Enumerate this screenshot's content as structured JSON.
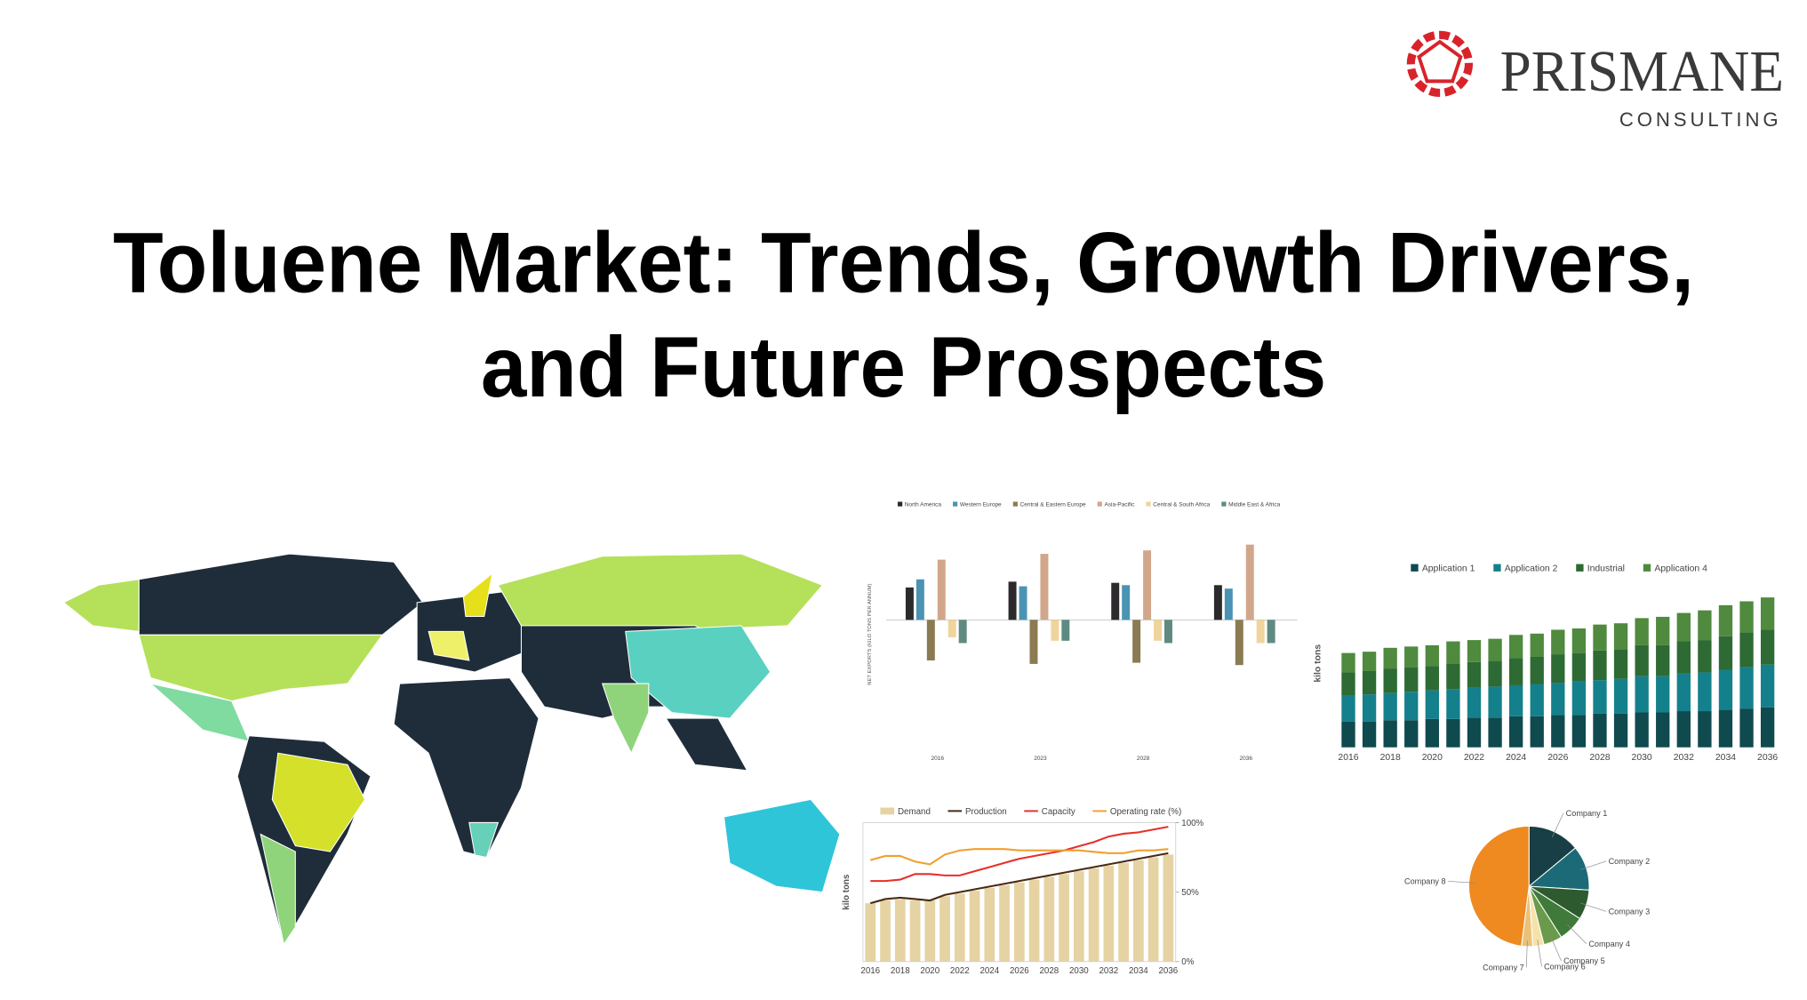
{
  "header": {
    "brand": "PRISMANE",
    "tagline": "CONSULTING"
  },
  "title": [
    "Toluene Market: Trends, Growth Drivers,",
    "and Future Prospects"
  ],
  "chart_data": [
    {
      "type": "bar",
      "y_label": "NET EXPORTS (KILO TONS PER ANNUM)",
      "categories": [
        "2016",
        "2023",
        "2028",
        "2036"
      ],
      "ylim": [
        -115,
        90
      ],
      "series": [
        {
          "name": "North America",
          "color": "#2d2a2e",
          "values": [
            28,
            33,
            32,
            30
          ]
        },
        {
          "name": "Western Europe",
          "color": "#4b93b3",
          "values": [
            35,
            29,
            30,
            27
          ]
        },
        {
          "name": "Central & Eastern Europe",
          "color": "#8a7b52",
          "values": [
            -35,
            -38,
            -37,
            -39
          ]
        },
        {
          "name": "Asia-Pacific",
          "color": "#d2a68b",
          "values": [
            52,
            57,
            60,
            65
          ]
        },
        {
          "name": "Central & South Africa",
          "color": "#efd49b",
          "values": [
            -15,
            -18,
            -18,
            -20
          ]
        },
        {
          "name": "Middle East & Africa",
          "color": "#5f8a82",
          "values": [
            -20,
            -18,
            -20,
            -20
          ]
        }
      ]
    },
    {
      "type": "bar",
      "stacked": true,
      "y_label": "kilo tons",
      "categories": [
        "2016",
        null,
        "2018",
        null,
        "2020",
        null,
        "2022",
        null,
        "2024",
        null,
        "2026",
        null,
        "2028",
        null,
        "2030",
        null,
        "2032",
        null,
        "2034",
        null,
        "2036"
      ],
      "ylim": [
        0,
        130
      ],
      "series": [
        {
          "name": "Application 1",
          "color": "#0f4a4f",
          "values": [
            20,
            20,
            21,
            21,
            22,
            22,
            23,
            23,
            24,
            24,
            25,
            25,
            26,
            26,
            27,
            27,
            28,
            28,
            29,
            30,
            31
          ]
        },
        {
          "name": "Application 2",
          "color": "#14808c",
          "values": [
            20,
            21,
            21,
            22,
            22,
            23,
            23,
            24,
            24,
            25,
            25,
            26,
            26,
            27,
            28,
            28,
            29,
            30,
            31,
            32,
            33
          ]
        },
        {
          "name": "Industrial",
          "color": "#2e6a34",
          "values": [
            18,
            18,
            19,
            19,
            19,
            20,
            20,
            20,
            21,
            21,
            22,
            22,
            23,
            23,
            24,
            24,
            25,
            25,
            26,
            27,
            27
          ]
        },
        {
          "name": "Application 4",
          "color": "#4f8a3e",
          "values": [
            15,
            15,
            16,
            16,
            16,
            17,
            17,
            17,
            18,
            18,
            19,
            19,
            20,
            20,
            21,
            22,
            22,
            23,
            24,
            24,
            25
          ]
        }
      ]
    },
    {
      "type": "combo",
      "y_label": "kilo tons",
      "categories": [
        "2016",
        null,
        "2018",
        null,
        "2020",
        null,
        "2022",
        null,
        "2024",
        null,
        "2026",
        null,
        "2028",
        null,
        "2030",
        null,
        "2032",
        null,
        "2034",
        null,
        "2036"
      ],
      "ylim": [
        0,
        100
      ],
      "y2lim": [
        0,
        100
      ],
      "y2ticks": [
        {
          "value": 0,
          "label": "0%"
        },
        {
          "value": 50,
          "label": "50%"
        },
        {
          "value": 100,
          "label": "100%"
        }
      ],
      "series": [
        {
          "name": "Demand",
          "type": "bar",
          "color": "#e6d3a3",
          "values": [
            42,
            44,
            45,
            44,
            44,
            47,
            49,
            51,
            53,
            55,
            57,
            59,
            61,
            63,
            65,
            67,
            69,
            71,
            73,
            75,
            77
          ]
        },
        {
          "name": "Production",
          "type": "line",
          "color": "#4a2a14",
          "values": [
            42,
            45,
            46,
            45,
            44,
            48,
            50,
            52,
            54,
            56,
            58,
            60,
            62,
            64,
            66,
            68,
            70,
            72,
            74,
            76,
            78
          ]
        },
        {
          "name": "Capacity",
          "type": "line",
          "color": "#e6302a",
          "values": [
            58,
            58,
            59,
            63,
            63,
            62,
            62,
            65,
            68,
            71,
            74,
            76,
            78,
            80,
            83,
            86,
            90,
            92,
            93,
            95,
            97
          ]
        },
        {
          "name": "Operating rate (%)",
          "type": "line",
          "axis": "y2",
          "color": "#f0a030",
          "values": [
            73,
            76,
            76,
            72,
            70,
            77,
            80,
            81,
            81,
            81,
            80,
            80,
            80,
            80,
            80,
            79,
            78,
            78,
            80,
            80,
            81
          ]
        }
      ]
    },
    {
      "type": "pie",
      "categories": [
        "Company 1",
        "Company 2",
        "Company 3",
        "Company 4",
        "Company 5",
        "Company 6",
        "Company 7",
        "Company 8"
      ],
      "values": [
        14,
        12,
        8,
        7,
        5,
        3,
        3,
        48
      ],
      "colors": [
        "#173f45",
        "#1c6a78",
        "#2d5a2e",
        "#3f7a3a",
        "#6a9a4a",
        "#f5e2a8",
        "#e9c27a",
        "#ee8a1f"
      ]
    }
  ]
}
